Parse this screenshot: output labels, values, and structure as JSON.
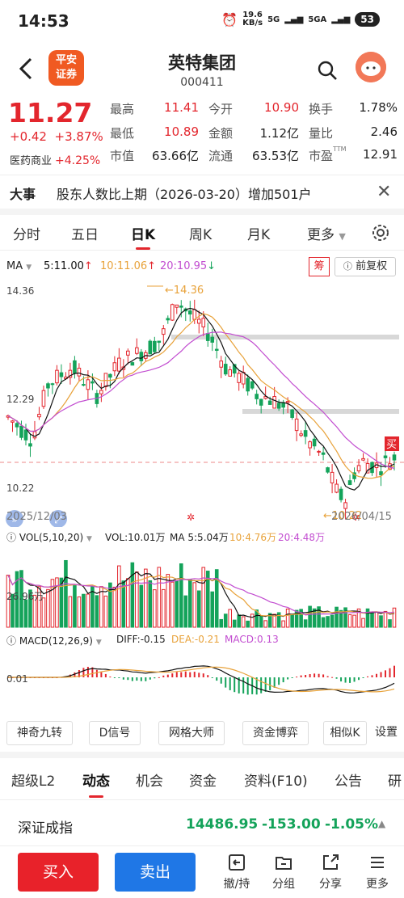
{
  "status": {
    "time": "14:53",
    "speed": "19.6",
    "speed_unit": "KB/s",
    "net1": "5G",
    "net2": "5GA",
    "battery": "53"
  },
  "header": {
    "broker": "平安\n证券",
    "broker_l1": "平安",
    "broker_l2": "证券",
    "title": "英特集团",
    "code": "000411"
  },
  "quote": {
    "price": "11.27",
    "change": "+0.42",
    "change_pct": "+3.87%",
    "industry": "医药商业",
    "industry_pct": "+4.25%",
    "items": [
      {
        "label": "最高",
        "value": "11.41"
      },
      {
        "label": "今开",
        "value": "10.90"
      },
      {
        "label": "换手",
        "value": "1.78%"
      },
      {
        "label": "最低",
        "value": "10.89"
      },
      {
        "label": "金额",
        "value": "1.12亿"
      },
      {
        "label": "量比",
        "value": "2.46"
      },
      {
        "label": "市值",
        "value": "63.66亿"
      },
      {
        "label": "流通",
        "value": "63.53亿"
      },
      {
        "label": "市盈",
        "value": "12.91"
      }
    ],
    "ttm": "TTM"
  },
  "event": {
    "tag": "大事",
    "text": "股东人数比上期（2026-03-20）增加501户"
  },
  "tabs": [
    "分时",
    "五日",
    "日K",
    "周K",
    "月K",
    "更多"
  ],
  "ma": {
    "label": "MA",
    "ma5": "5:11.00",
    "ma10": "10:11.06",
    "ma20": "20:10.95",
    "arrow_up": "↑",
    "arrow_down": "↓",
    "chou": "筹",
    "fq": "前复权"
  },
  "kline": {
    "high_label": "14.36",
    "low_label": "10.22",
    "mid_label": "12.29",
    "peak": "14.36",
    "trough": "10.22",
    "start_date": "2025/12/03",
    "end_date": "2026/04/15",
    "buy_tag": "买"
  },
  "vol": {
    "legend": "VOL(5,10,20)",
    "vol": "VOL:10.01万",
    "ma5": "MA 5:5.04万",
    "ma10": "10:4.76万",
    "ma20": "20:4.48万",
    "axis": "26.96万"
  },
  "macd": {
    "legend": "MACD(12,26,9)",
    "diff": "DIFF:-0.15",
    "dea": "DEA:-0.21",
    "macd": "MACD:0.13",
    "axis": "0.01"
  },
  "tools": [
    "神奇九转",
    "D信号",
    "网格大师",
    "资金博弈",
    "相似K",
    "设置"
  ],
  "bottom_tabs": [
    "超级L2",
    "动态",
    "机会",
    "资金",
    "资料(F10)",
    "公告",
    "研"
  ],
  "index": {
    "name": "深证成指",
    "value": "14486.95",
    "change": "-153.00",
    "pct": "-1.05%"
  },
  "actions": {
    "buy": "买入",
    "sell": "卖出",
    "items": [
      "撤/持",
      "分组",
      "分享",
      "更多"
    ]
  },
  "colors": {
    "up": "#e3262d",
    "down": "#14a35a",
    "ma5": "#111111",
    "ma10": "#e8a23a",
    "ma20": "#c24dd0"
  }
}
